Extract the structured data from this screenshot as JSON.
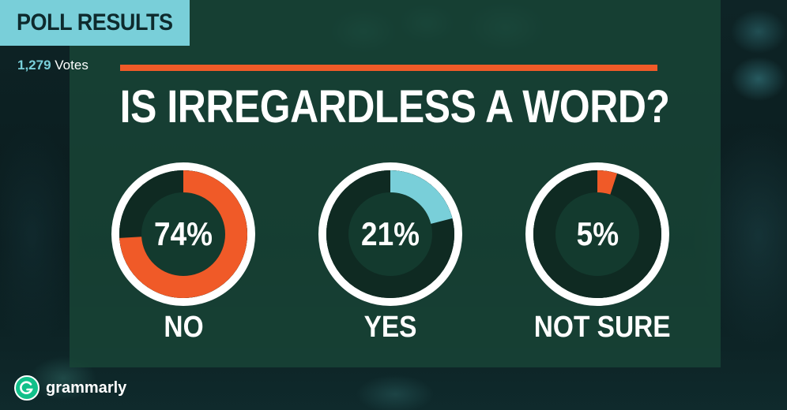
{
  "header": {
    "tag": "POLL RESULTS",
    "votes_count": "1,279",
    "votes_label": "Votes"
  },
  "brand": {
    "name": "grammarly",
    "icon": "grammarly-g-icon"
  },
  "colors": {
    "accent": "#f05a28",
    "secondary": "#79cfd9",
    "track": "#0f2a22",
    "ring_outline": "#ffffff",
    "panel": "#184637"
  },
  "chart_data": {
    "type": "pie",
    "title": "IS IRREGARDLESS A WORD?",
    "categories": [
      "NO",
      "YES",
      "NOT SURE"
    ],
    "values": [
      74,
      21,
      5
    ],
    "value_labels": [
      "74%",
      "21%",
      "5%"
    ],
    "colors": [
      "#f05a28",
      "#79cfd9",
      "#f05a28"
    ]
  }
}
